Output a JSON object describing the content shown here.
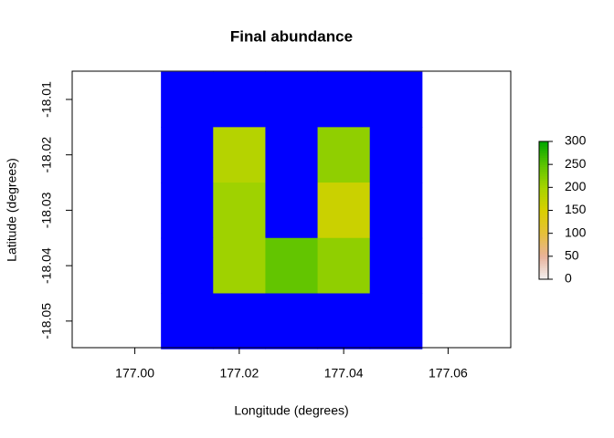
{
  "chart_data": {
    "type": "raster",
    "title": "Final abundance",
    "x_label": "Longitude (degrees)",
    "y_label": "Latitude (degrees)",
    "x": [
      177.01,
      177.02,
      177.03,
      177.04,
      177.05
    ],
    "y": [
      -18.01,
      -18.02,
      -18.03,
      -18.04,
      -18.05
    ],
    "z": [
      [
        null,
        null,
        null,
        null,
        null
      ],
      [
        null,
        185,
        null,
        215,
        null
      ],
      [
        null,
        205,
        null,
        165,
        null
      ],
      [
        null,
        205,
        245,
        215,
        null
      ],
      [
        null,
        null,
        null,
        null,
        null
      ]
    ],
    "na_color": "#0000ff",
    "xlim": [
      176.988,
      177.072
    ],
    "ylim": [
      -18.0548,
      -18.0049
    ],
    "xticks": [
      {
        "value": 177,
        "label": "177.00"
      },
      177.02,
      177.04,
      177.06
    ],
    "yticks": [
      -18.01,
      -18.02,
      -18.03,
      -18.04,
      -18.05
    ],
    "zlim": [
      0,
      300
    ],
    "zticks": [
      0,
      50,
      100,
      150,
      200,
      250,
      300
    ],
    "colorscale": [
      "#f2f2f2",
      "#e9b29b",
      "#e6c03a",
      "#d9cf00",
      "#a6d400",
      "#5cc300",
      "#00a600"
    ]
  }
}
